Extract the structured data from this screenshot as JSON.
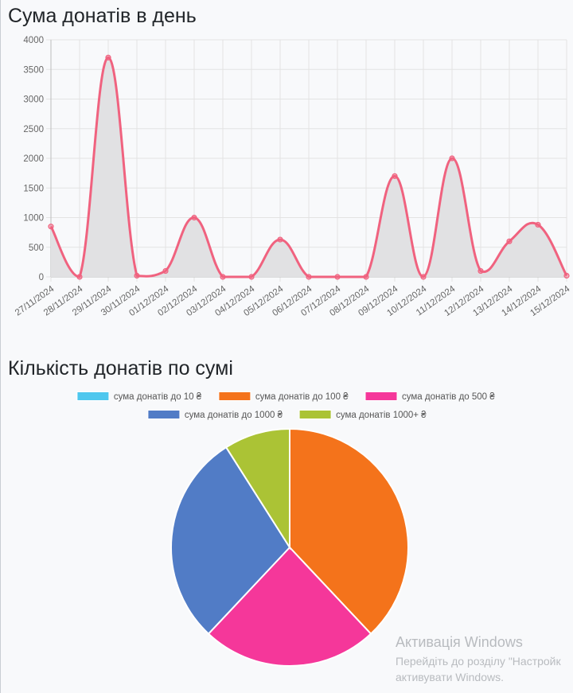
{
  "page": {
    "background": "#f8f9fb"
  },
  "line_title": "Сума донатів в день",
  "pie_title": "Кількість донатів по сумі",
  "watermark": {
    "title": "Активація Windows",
    "line1": "Перейдіть до розділу \"Настройк",
    "line2": "активувати Windows."
  },
  "chart_data": [
    {
      "type": "area",
      "title": "Сума донатів в день",
      "categories": [
        "27/11/2024",
        "28/11/2024",
        "29/11/2024",
        "30/11/2024",
        "01/12/2024",
        "02/12/2024",
        "03/12/2024",
        "04/12/2024",
        "05/12/2024",
        "06/12/2024",
        "07/12/2024",
        "08/12/2024",
        "09/12/2024",
        "10/12/2024",
        "11/12/2024",
        "12/12/2024",
        "13/12/2024",
        "14/12/2024",
        "15/12/2024"
      ],
      "values": [
        850,
        0,
        3700,
        20,
        100,
        1000,
        0,
        0,
        630,
        0,
        0,
        0,
        1700,
        0,
        2000,
        100,
        600,
        880,
        20
      ],
      "ylim": [
        0,
        4000
      ],
      "yticks": [
        0,
        500,
        1000,
        1500,
        2000,
        2500,
        3000,
        3500,
        4000
      ],
      "grid": true,
      "line_color": "#f0627f",
      "fill_color": "#e1e1e3"
    },
    {
      "type": "pie",
      "title": "Кількість донатів по сумі",
      "legend_position": "top",
      "slices": [
        {
          "label": "сума донатів до 10 ₴",
          "value": 0,
          "color": "#4ec7ee"
        },
        {
          "label": "сума донатів до 100 ₴",
          "value": 38,
          "color": "#f4731b"
        },
        {
          "label": "сума донатів до 500 ₴",
          "value": 24,
          "color": "#f5379a"
        },
        {
          "label": "сума донатів до 1000 ₴",
          "value": 29,
          "color": "#517cc6"
        },
        {
          "label": "сума донатів 1000+ ₴",
          "value": 9,
          "color": "#abc335"
        }
      ]
    }
  ]
}
